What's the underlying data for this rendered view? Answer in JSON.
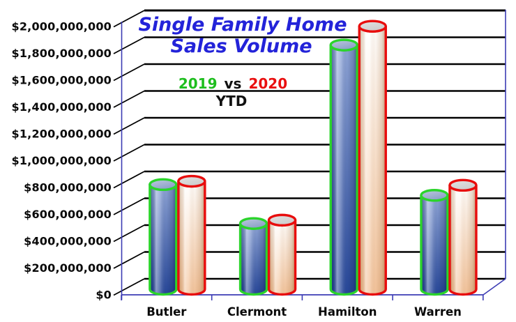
{
  "title": {
    "line1": "Single Family Home",
    "line2": "Sales Volume"
  },
  "legend": {
    "year_2019": "2019",
    "separator": "vs",
    "year_2020": "2020",
    "period": "YTD"
  },
  "colors": {
    "background": "#FFFFFF",
    "title_blue": "#2323D9",
    "legend_green": "#1FBE1F",
    "legend_red": "#E90F0F",
    "text_black": "#111111",
    "gridline_black": "#000000",
    "axis_line_blue": "#3C3CB4",
    "outline_2019_green": "#2BD42B",
    "outline_2020_red": "#E80D0D"
  },
  "chart_data": {
    "type": "bar",
    "subtype": "3d-cylinder",
    "title": "Single Family Home Sales Volume",
    "subtitle": "2019 vs 2020 YTD",
    "categories": [
      "Butler",
      "Clermont",
      "Hamilton",
      "Warren"
    ],
    "series": [
      {
        "name": "2019",
        "outline_color": "#2BD42B",
        "body_top_color": "#91A7D8",
        "body_bottom_color": "#28489A",
        "cap_color": "#8A9EC6",
        "values": [
          780000000,
          490000000,
          1820000000,
          700000000
        ]
      },
      {
        "name": "2020",
        "outline_color": "#E80D0D",
        "body_top_color": "#FFFFFF",
        "body_bottom_color": "#F3C49C",
        "cap_color": "#CCCCCC",
        "values": [
          805000000,
          515000000,
          1960000000,
          775000000
        ]
      }
    ],
    "xlabel": "",
    "ylabel": "",
    "ylim": [
      0,
      2000000000
    ],
    "ytick_interval": 200000000,
    "ytick_labels": [
      "$0",
      "$200,000,000",
      "$400,000,000",
      "$600,000,000",
      "$800,000,000",
      "$1,000,000,000",
      "$1,200,000,000",
      "$1,400,000,000",
      "$1,600,000,000",
      "$1,800,000,000",
      "$2,000,000,000"
    ],
    "grid": true,
    "legend_position": "inside-top-left"
  }
}
